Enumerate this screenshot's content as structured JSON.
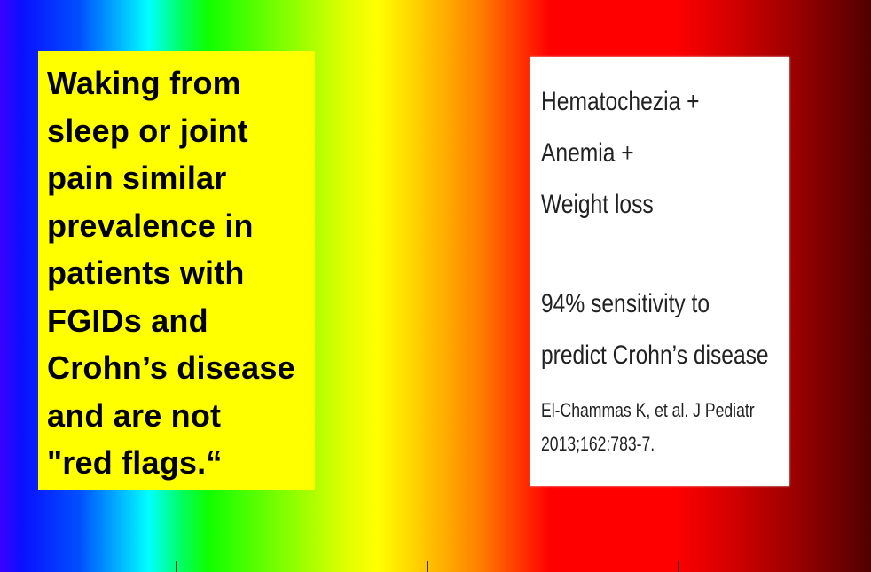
{
  "left_box": {
    "text": "Waking from\nsleep or joint\npain similar\nprevalence in\npatients with\nFGIDs and\nCrohn’s disease\nand are not\n\"red flags.“"
  },
  "right_card": {
    "lines": [
      "Hematochezia +",
      "Anemia +",
      "Weight loss"
    ],
    "finding_lines": [
      "94% sensitivity to",
      "predict Crohn’s disease"
    ],
    "citation_lines": [
      "El-Chammas  K, et al. J Pediatr",
      "2013;162:783-7."
    ]
  },
  "background": {
    "style": "visible spectrum gradient",
    "colors": [
      "#0a10ff",
      "#00ffff",
      "#10ff00",
      "#ffff00",
      "#ff8000",
      "#ff0000",
      "#500000"
    ]
  }
}
